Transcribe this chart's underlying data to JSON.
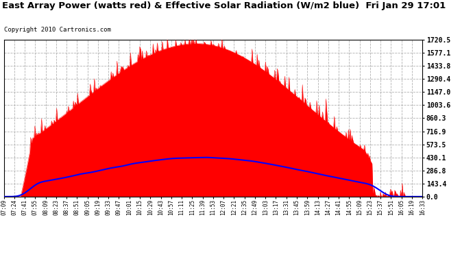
{
  "title": "East Array Power (watts red) & Effective Solar Radiation (W/m2 blue)  Fri Jan 29 17:01",
  "copyright": "Copyright 2010 Cartronics.com",
  "yticks": [
    0.0,
    143.4,
    286.8,
    430.1,
    573.5,
    716.9,
    860.3,
    1003.6,
    1147.0,
    1290.4,
    1433.8,
    1577.1,
    1720.5
  ],
  "ymax": 1720.5,
  "ymin": 0.0,
  "bg_color": "#ffffff",
  "plot_bg": "#ffffff",
  "grid_color": "#b0b0b0",
  "power_color": "#ff0000",
  "radiation_color": "#0000ff",
  "title_fontsize": 9.5,
  "copyright_fontsize": 6.5,
  "tick_fontsize": 7,
  "xtick_fontsize": 5.5,
  "x_labels": [
    "07:09",
    "07:24",
    "07:41",
    "07:55",
    "08:09",
    "08:23",
    "08:37",
    "08:51",
    "09:05",
    "09:19",
    "09:33",
    "09:47",
    "10:01",
    "10:15",
    "10:29",
    "10:43",
    "10:57",
    "11:11",
    "11:25",
    "11:39",
    "11:53",
    "12:07",
    "12:21",
    "12:35",
    "12:49",
    "13:03",
    "13:17",
    "13:31",
    "13:45",
    "13:59",
    "14:13",
    "14:27",
    "14:41",
    "14:55",
    "15:09",
    "15:23",
    "15:37",
    "15:51",
    "16:05",
    "16:19",
    "16:33"
  ]
}
